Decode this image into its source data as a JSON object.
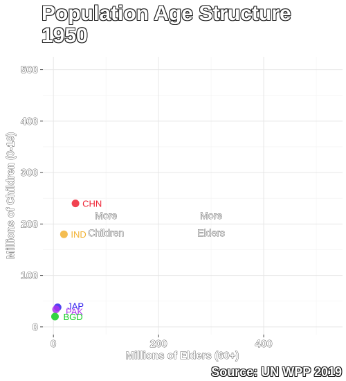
{
  "chart_data": {
    "type": "scatter",
    "title": "Population Age Structure",
    "subtitle": "1950",
    "xlabel": "Millions of Elders (60+)",
    "ylabel": "Millions of Children (0-19)",
    "caption": "Source: UN WPP 2019",
    "xlim": [
      -20,
      550
    ],
    "ylim": [
      -15,
      525
    ],
    "xticks": [
      0,
      200,
      400
    ],
    "yticks": [
      0,
      100,
      200,
      300,
      400,
      500
    ],
    "grid": true,
    "region_labels": [
      {
        "line1": "More",
        "line2": "Children",
        "x": 100,
        "y": 215
      },
      {
        "line1": "More",
        "line2": "Elders",
        "x": 300,
        "y": 215
      }
    ],
    "points": [
      {
        "label": "CHN",
        "x": 42,
        "y": 240,
        "color": "#ee2233"
      },
      {
        "label": "IND",
        "x": 20,
        "y": 180,
        "color": "#f2b233"
      },
      {
        "label": "JAP",
        "x": 8,
        "y": 38,
        "color": "#3322ee"
      },
      {
        "label": "PAK",
        "x": 5,
        "y": 34,
        "color": "#aa33ee"
      },
      {
        "label": "BGD",
        "x": 3,
        "y": 20,
        "color": "#11cc22"
      }
    ]
  }
}
